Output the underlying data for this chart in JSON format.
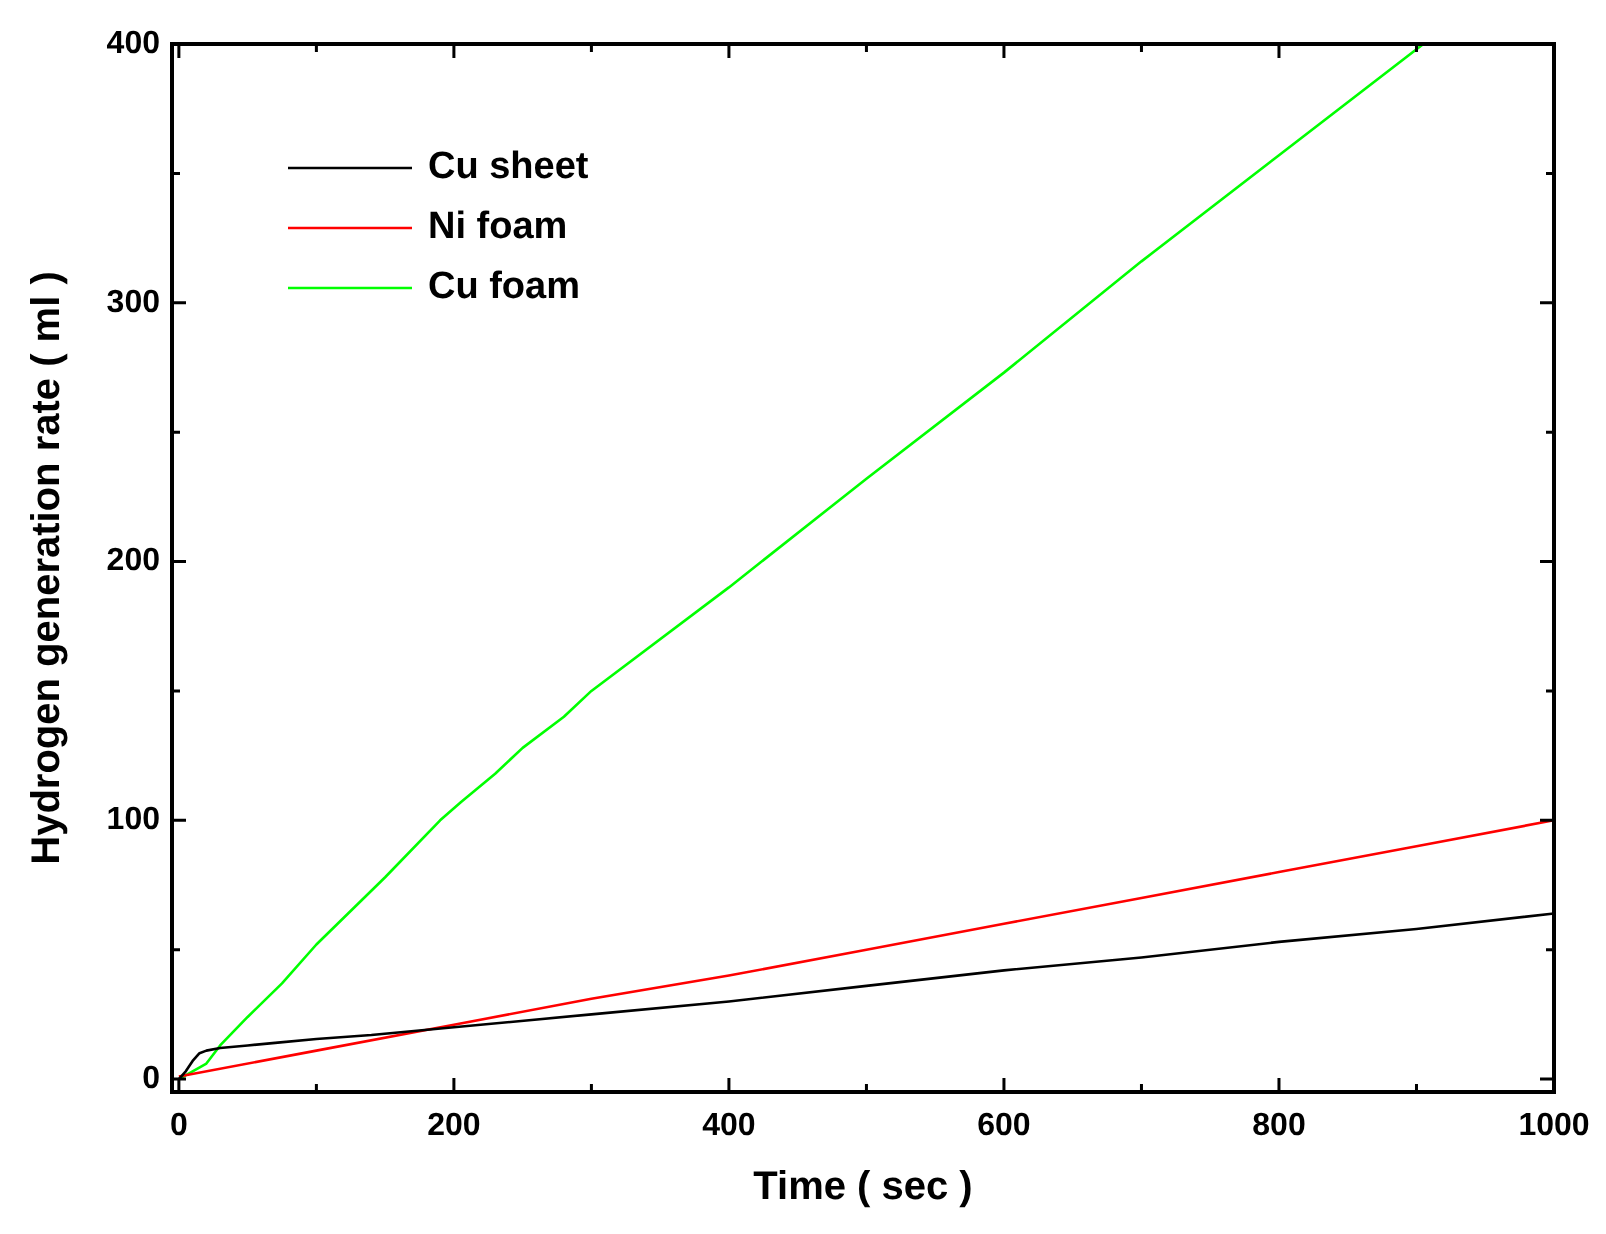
{
  "chart_data": {
    "type": "line",
    "xlabel": "Time ( sec )",
    "ylabel": "Hydrogen generation rate ( ml )",
    "xlim": [
      -5,
      1000
    ],
    "ylim": [
      -5,
      400
    ],
    "xticks": [
      0,
      {
        "value": 100,
        "label": null
      },
      200,
      {
        "value": 300,
        "label": null
      },
      400,
      {
        "value": 500,
        "label": null
      },
      600,
      {
        "value": 700,
        "label": null
      },
      800,
      {
        "value": 900,
        "label": null
      },
      1000
    ],
    "yticks": [
      0,
      {
        "value": 50,
        "label": null
      },
      100,
      {
        "value": 150,
        "label": null
      },
      200,
      {
        "value": 250,
        "label": null
      },
      300,
      {
        "value": 350,
        "label": null
      },
      400
    ],
    "grid": false,
    "legend": "top left",
    "marker": "none",
    "line_style": "solid",
    "series": [
      {
        "name": "Cu sheet",
        "color": "#000000",
        "x": [
          0,
          5,
          10,
          15,
          20,
          30,
          50,
          70,
          100,
          140,
          200,
          300,
          400,
          500,
          600,
          700,
          800,
          900,
          1000
        ],
        "values": [
          0,
          3,
          7,
          10,
          11,
          12,
          13,
          14,
          15.5,
          17,
          20,
          25,
          30,
          36,
          42,
          47,
          53,
          58,
          64
        ]
      },
      {
        "name": "Ni foam",
        "color": "#ff0000",
        "x": [
          0,
          100,
          200,
          300,
          400,
          500,
          600,
          700,
          800,
          900,
          1000
        ],
        "values": [
          1,
          11,
          21,
          31,
          40,
          50,
          60,
          70,
          80,
          90,
          100
        ]
      },
      {
        "name": "Cu foam",
        "color": "#00ff00",
        "x": [
          0,
          10,
          20,
          30,
          50,
          75,
          100,
          150,
          190,
          205,
          230,
          250,
          280,
          300,
          400,
          500,
          600,
          700,
          800,
          905
        ],
        "values": [
          0,
          3,
          6,
          13,
          24,
          37,
          52,
          78,
          100,
          107,
          118,
          128,
          140,
          150,
          190,
          232,
          273,
          316,
          357,
          400
        ]
      }
    ]
  }
}
